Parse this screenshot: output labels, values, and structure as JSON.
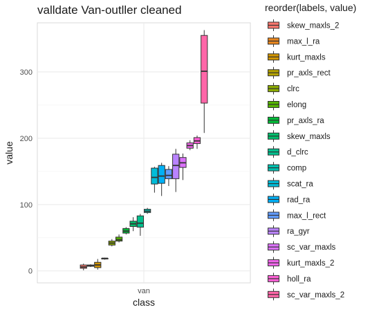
{
  "chart_data": {
    "type": "boxplot",
    "title": "valldate Van-outller cleaned",
    "xlabel": "class",
    "ylabel": "value",
    "categories": [
      "van"
    ],
    "ylim": [
      -18,
      374
    ],
    "yticks": [
      0,
      100,
      200,
      300
    ],
    "grid": true,
    "legend_title": "reorder(labels, value)",
    "legend_position": "right",
    "series": [
      {
        "name": "skew_maxls_2",
        "color": "#F8766D",
        "min": 1,
        "q1": 4,
        "median": 6,
        "q3": 9,
        "max": 11
      },
      {
        "name": "max_l_ra",
        "color": "#E7851E",
        "min": 6,
        "q1": 7,
        "median": 8,
        "q3": 9,
        "max": 10
      },
      {
        "name": "kurt_maxls",
        "color": "#D09400",
        "min": 2,
        "q1": 5,
        "median": 9,
        "q3": 13,
        "max": 18
      },
      {
        "name": "pr_axls_rect",
        "color": "#B2A100",
        "min": 17,
        "q1": 18,
        "median": 19,
        "q3": 19,
        "max": 20
      },
      {
        "name": "clrc",
        "color": "#8BAB00",
        "min": 37,
        "q1": 39,
        "median": 42,
        "q3": 45,
        "max": 48
      },
      {
        "name": "elong",
        "color": "#55B400",
        "min": 43,
        "q1": 45,
        "median": 47,
        "q3": 51,
        "max": 55
      },
      {
        "name": "pr_axls_ra",
        "color": "#00BA38",
        "min": 55,
        "q1": 57,
        "median": 60,
        "q3": 64,
        "max": 66
      },
      {
        "name": "skew_maxls",
        "color": "#00BE6C",
        "min": 60,
        "q1": 67,
        "median": 71,
        "q3": 75,
        "max": 81
      },
      {
        "name": "d_clrc",
        "color": "#00C08E",
        "min": 53,
        "q1": 66,
        "median": 72,
        "q3": 83,
        "max": 86
      },
      {
        "name": "comp",
        "color": "#00C0AF",
        "min": 86,
        "q1": 88,
        "median": 90,
        "q3": 93,
        "max": 95
      },
      {
        "name": "scat_ra",
        "color": "#00BCD8",
        "min": 118,
        "q1": 131,
        "median": 141,
        "q3": 155,
        "max": 157
      },
      {
        "name": "rad_ra",
        "color": "#00B0F6",
        "min": 113,
        "q1": 132,
        "median": 143,
        "q3": 159,
        "max": 163
      },
      {
        "name": "max_l_rect",
        "color": "#619CFF",
        "min": 128,
        "q1": 139,
        "median": 144,
        "q3": 153,
        "max": 158
      },
      {
        "name": "ra_gyr",
        "color": "#B983FF",
        "min": 119,
        "q1": 139,
        "median": 159,
        "q3": 176,
        "max": 184
      },
      {
        "name": "sc_var_maxls",
        "color": "#DB72FB",
        "min": 137,
        "q1": 156,
        "median": 163,
        "q3": 171,
        "max": 177
      },
      {
        "name": "kurt_maxls_2",
        "color": "#F066EA",
        "min": 182,
        "q1": 185,
        "median": 189,
        "q3": 193,
        "max": 197
      },
      {
        "name": "holl_ra",
        "color": "#FC61D5",
        "min": 184,
        "q1": 192,
        "median": 196,
        "q3": 201,
        "max": 204
      },
      {
        "name": "sc_var_maxls_2",
        "color": "#FF66A8",
        "min": 208,
        "q1": 253,
        "median": 301,
        "q3": 355,
        "max": 363
      }
    ]
  }
}
